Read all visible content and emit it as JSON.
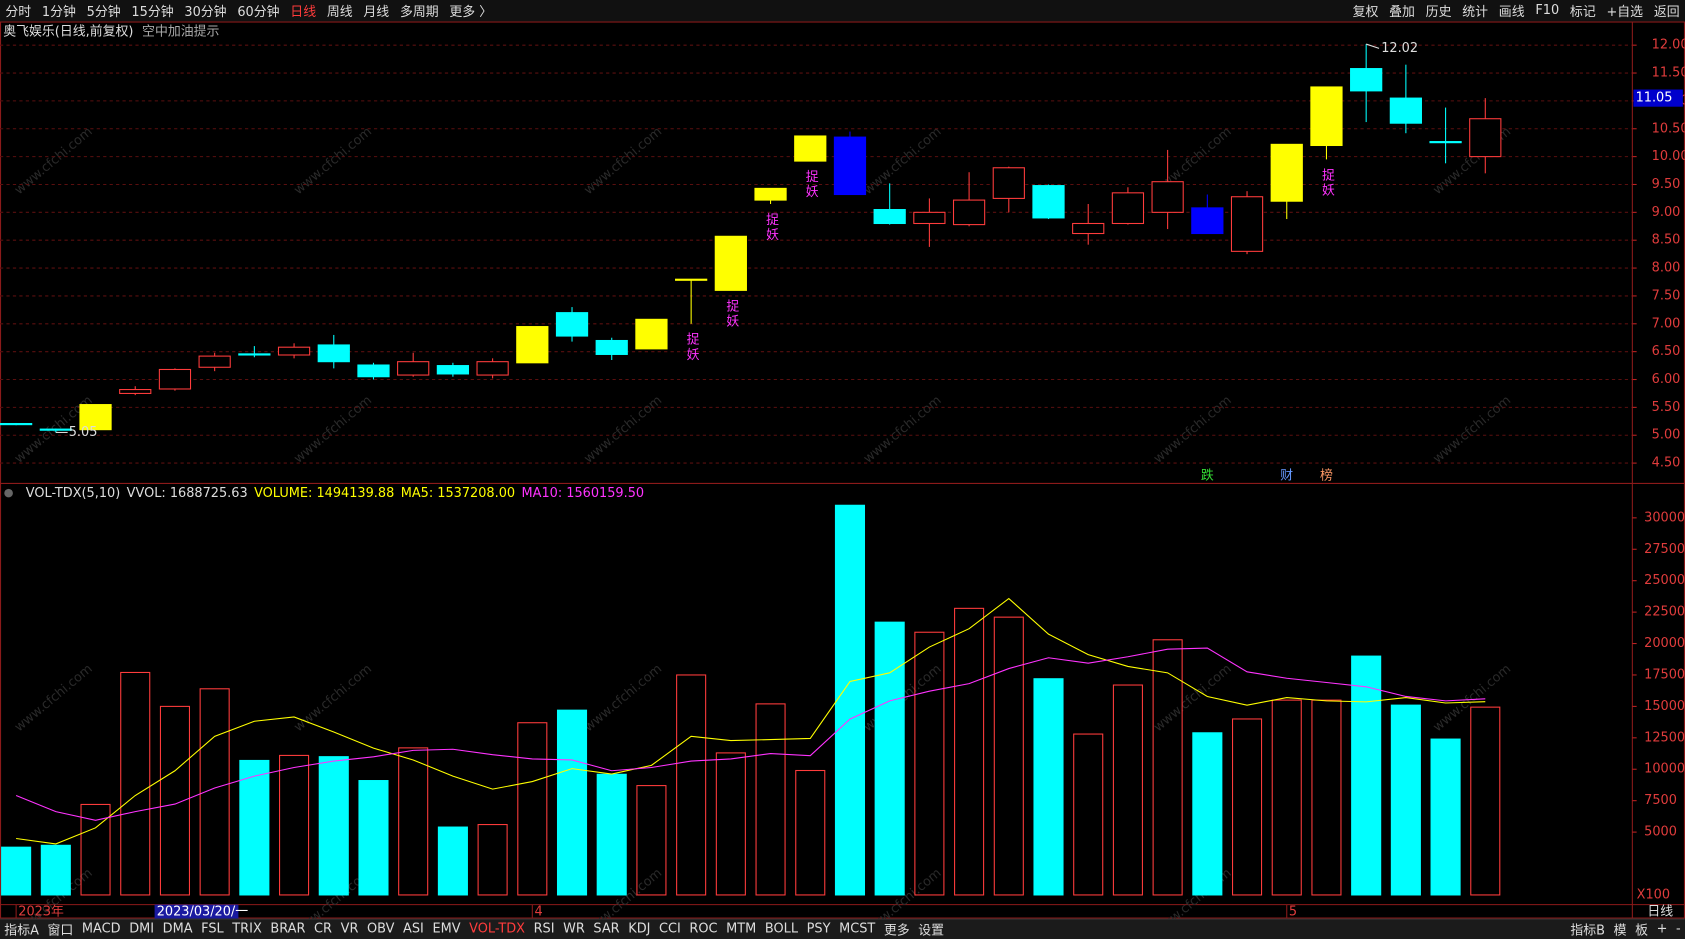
{
  "toolbar": {
    "left": [
      "分时",
      "1分钟",
      "5分钟",
      "15分钟",
      "30分钟",
      "60分钟",
      "日线",
      "周线",
      "月线",
      "多周期",
      "更多 〉"
    ],
    "active": "日线",
    "right": [
      "复权",
      "叠加",
      "历史",
      "统计",
      "画线",
      "F10",
      "标记",
      "+自选",
      "返回"
    ]
  },
  "header": {
    "title": "奥飞娱乐(日线,前复权)",
    "notice": "空中加油提示"
  },
  "tabs": {
    "left": [
      "指标A",
      "窗口",
      "MACD",
      "DMI",
      "DMA",
      "FSL",
      "TRIX",
      "BRAR",
      "CR",
      "VR",
      "OBV",
      "ASI",
      "EMV",
      "VOL-TDX",
      "RSI",
      "WR",
      "SAR",
      "KDJ",
      "CCI",
      "ROC",
      "MTM",
      "BOLL",
      "PSY",
      "MCST",
      "更多",
      "设置"
    ],
    "active": "VOL-TDX",
    "right": [
      "指标B",
      "模",
      "板",
      "+",
      "-"
    ]
  },
  "watermark": "www.cfchi.com",
  "chart_data": [
    {
      "type": "candlestick",
      "candles": {
        "open": [
          5.21,
          5.11,
          5.1,
          5.75,
          5.83,
          6.22,
          6.46,
          6.44,
          6.62,
          6.26,
          6.08,
          6.25,
          6.08,
          6.3,
          7.2,
          6.7,
          6.55,
          7.79,
          7.6,
          9.22,
          9.92,
          10.35,
          9.05,
          8.8,
          8.78,
          9.25,
          9.48,
          8.62,
          8.8,
          9.0,
          9.08,
          8.3,
          9.2,
          10.2,
          11.58,
          11.05,
          10.27,
          10.0
        ],
        "high": [
          5.22,
          5.12,
          5.55,
          5.88,
          6.2,
          6.48,
          6.6,
          6.65,
          6.8,
          6.3,
          6.48,
          6.3,
          6.38,
          6.95,
          7.3,
          6.75,
          7.08,
          7.8,
          8.57,
          9.43,
          10.37,
          10.45,
          9.52,
          9.25,
          9.72,
          9.82,
          9.5,
          9.15,
          9.45,
          10.12,
          9.32,
          9.38,
          10.22,
          11.25,
          12.02,
          11.65,
          10.88,
          11.05
        ],
        "low": [
          5.18,
          5.05,
          5.1,
          5.72,
          5.8,
          6.15,
          6.4,
          6.38,
          6.2,
          6.0,
          6.05,
          6.05,
          6.02,
          6.3,
          6.68,
          6.35,
          6.55,
          7.0,
          7.6,
          9.15,
          9.92,
          9.32,
          8.78,
          8.38,
          8.75,
          9.0,
          8.88,
          8.42,
          8.78,
          8.7,
          8.62,
          8.25,
          8.88,
          9.95,
          10.62,
          10.42,
          9.88,
          9.7
        ],
        "close": [
          5.19,
          5.09,
          5.55,
          5.82,
          6.18,
          6.42,
          6.44,
          6.58,
          6.32,
          6.05,
          6.32,
          6.1,
          6.32,
          6.95,
          6.78,
          6.45,
          7.08,
          7.8,
          8.57,
          9.43,
          10.37,
          9.32,
          8.8,
          9.0,
          9.22,
          9.8,
          8.9,
          8.8,
          9.35,
          9.55,
          8.62,
          9.28,
          10.22,
          11.25,
          11.18,
          10.6,
          10.25,
          10.68
        ]
      },
      "colors": [
        "#00ffff",
        "#00ffff",
        "#ffff00",
        "#ff3c3c",
        "#ff3c3c",
        "#ff3c3c",
        "#00ffff",
        "#ff3c3c",
        "#00ffff",
        "#00ffff",
        "#ff3c3c",
        "#00ffff",
        "#ff3c3c",
        "#ffff00",
        "#00ffff",
        "#00ffff",
        "#ffff00",
        "#ffff00",
        "#ffff00",
        "#ffff00",
        "#ffff00",
        "#0000ff",
        "#00ffff",
        "#ff3c3c",
        "#ff3c3c",
        "#ff3c3c",
        "#00ffff",
        "#ff3c3c",
        "#ff3c3c",
        "#ff3c3c",
        "#0000ff",
        "#ff3c3c",
        "#ffff00",
        "#ffff00",
        "#00ffff",
        "#00ffff",
        "#00ffff",
        "#ff3c3c"
      ],
      "up_color": "#ff3c3c",
      "labels": [
        null,
        null,
        null,
        null,
        null,
        null,
        null,
        null,
        null,
        null,
        null,
        null,
        null,
        null,
        null,
        null,
        null,
        "捉妖",
        "捉妖",
        "捉妖",
        "捉妖",
        null,
        null,
        null,
        null,
        null,
        null,
        null,
        null,
        null,
        null,
        null,
        null,
        "捉妖",
        null,
        null,
        null,
        null
      ],
      "events": [
        null,
        null,
        null,
        null,
        null,
        null,
        null,
        null,
        null,
        null,
        null,
        null,
        null,
        null,
        null,
        null,
        null,
        null,
        null,
        null,
        null,
        null,
        null,
        null,
        null,
        null,
        null,
        null,
        null,
        null,
        "跌",
        null,
        "财",
        "榜",
        null,
        null,
        null,
        null
      ],
      "event_colors": [
        null,
        null,
        null,
        null,
        null,
        null,
        null,
        null,
        null,
        null,
        null,
        null,
        null,
        null,
        null,
        null,
        null,
        null,
        null,
        null,
        null,
        null,
        null,
        null,
        null,
        null,
        null,
        null,
        null,
        null,
        "#33dd33",
        null,
        "#6699ff",
        "#ff9966",
        null,
        null,
        null,
        null
      ],
      "current_price": 11.05,
      "ylim": [
        4.2,
        12.4
      ],
      "yticks": [
        {
          "value": 4.5,
          "label": "4.50"
        },
        {
          "value": 5,
          "label": "5.00"
        },
        {
          "value": 5.5,
          "label": "5.50"
        },
        {
          "value": 6,
          "label": "6.00"
        },
        {
          "value": 6.5,
          "label": "6.50"
        },
        {
          "value": 7,
          "label": "7.00"
        },
        {
          "value": 7.5,
          "label": "7.50"
        },
        {
          "value": 8,
          "label": "8.00"
        },
        {
          "value": 8.5,
          "label": "8.50"
        },
        {
          "value": 9,
          "label": "9.00"
        },
        {
          "value": 9.5,
          "label": "9.50"
        },
        {
          "value": 10,
          "label": "10.00"
        },
        {
          "value": 10.5,
          "label": "10.50"
        },
        {
          "value": 11,
          "label": "11.00"
        },
        {
          "value": 11.5,
          "label": "11.50"
        },
        {
          "value": 12,
          "label": "12.00"
        }
      ],
      "grid": true
    },
    {
      "type": "bar",
      "title": "VOL-TDX(5,10)",
      "stat": "VVOL: 1688725.63",
      "legend": "VOLUME: 1494139.88",
      "legend_color": "#ffff00",
      "values": [
        3800,
        3950,
        7200,
        17700,
        15000,
        16400,
        10700,
        11100,
        11000,
        9100,
        11700,
        5400,
        5600,
        13700,
        14700,
        9600,
        8700,
        17500,
        11300,
        15200,
        9900,
        31000,
        21700,
        20900,
        22800,
        22100,
        17200,
        12800,
        16700,
        20300,
        12900,
        14000,
        15500,
        15500,
        19000,
        15100,
        12400,
        14941
      ],
      "down_color": "#00ffff",
      "up_color": "#ff3c3c",
      "series": [
        {
          "legend": "MA5: 1537208.00",
          "color": "#ffff00",
          "values": [
            4490,
            4060,
            5340,
            7910,
            9880,
            12620,
            13820,
            14160,
            12960,
            11680,
            10740,
            9450,
            8420,
            9020,
            10050,
            9620,
            10310,
            12620,
            12280,
            12360,
            12450,
            16980,
            17670,
            19720,
            21180,
            23580,
            20750,
            19120,
            18180,
            17670,
            15790,
            15100,
            15700,
            15440,
            15360,
            15700,
            15270,
            15372
          ]
        },
        {
          "legend": "MA10: 1560159.50",
          "color": "#ff33ff",
          "values": [
            7910,
            6630,
            5940,
            6630,
            7230,
            8510,
            9450,
            10140,
            10650,
            10990,
            11500,
            11590,
            11160,
            10820,
            10740,
            9880,
            10140,
            10650,
            10820,
            11250,
            11080,
            13990,
            15440,
            16210,
            16810,
            18010,
            18870,
            18440,
            18950,
            19550,
            19640,
            17750,
            17240,
            16900,
            16560,
            15790,
            15440,
            15602
          ]
        }
      ],
      "categories": [
        "2023年",
        null,
        null,
        "2023/03/20/一",
        null,
        null,
        null,
        null,
        null,
        null,
        null,
        null,
        null,
        "4",
        null,
        null,
        null,
        null,
        null,
        null,
        null,
        null,
        null,
        null,
        null,
        null,
        null,
        null,
        null,
        null,
        null,
        null,
        "5",
        null,
        null,
        null,
        null,
        null
      ],
      "cursor_index": 3,
      "ylim": [
        0,
        32500
      ],
      "yticks": [
        5000,
        7500,
        10000,
        12500,
        15000,
        17500,
        20000,
        22500,
        25000,
        27500,
        30000
      ],
      "unit_label": "X100",
      "period_label": "日线"
    }
  ]
}
